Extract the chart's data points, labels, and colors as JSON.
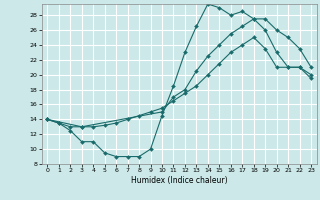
{
  "xlabel": "Humidex (Indice chaleur)",
  "bg_color": "#cce8e8",
  "grid_color": "#ffffff",
  "line_color": "#1a6b6b",
  "xlim": [
    -0.5,
    23.5
  ],
  "ylim": [
    8,
    29.5
  ],
  "yticks": [
    8,
    10,
    12,
    14,
    16,
    18,
    20,
    22,
    24,
    26,
    28
  ],
  "xticks": [
    0,
    1,
    2,
    3,
    4,
    5,
    6,
    7,
    8,
    9,
    10,
    11,
    12,
    13,
    14,
    15,
    16,
    17,
    18,
    19,
    20,
    21,
    22,
    23
  ],
  "curve1_x": [
    0,
    1,
    2,
    3,
    4,
    5,
    6,
    7,
    8,
    9,
    10,
    11,
    12,
    13,
    14,
    15,
    16,
    17,
    18,
    19,
    20,
    21,
    22,
    23
  ],
  "curve1_y": [
    14.0,
    13.5,
    12.5,
    11.0,
    11.0,
    9.5,
    9.0,
    9.0,
    9.0,
    10.0,
    14.5,
    18.5,
    23.0,
    26.5,
    29.5,
    29.0,
    28.0,
    28.5,
    27.5,
    26.0,
    23.0,
    21.0,
    21.0,
    19.5
  ],
  "curve2_x": [
    0,
    1,
    2,
    3,
    4,
    5,
    6,
    7,
    8,
    9,
    10,
    11,
    12,
    13,
    14,
    15,
    16,
    17,
    18,
    19,
    20,
    21,
    22,
    23
  ],
  "curve2_y": [
    14.0,
    13.5,
    13.0,
    13.0,
    13.0,
    13.2,
    13.5,
    14.0,
    14.5,
    15.0,
    15.5,
    16.5,
    17.5,
    18.5,
    20.0,
    21.5,
    23.0,
    24.0,
    25.0,
    23.5,
    21.0,
    21.0,
    21.0,
    20.0
  ],
  "curve3_x": [
    0,
    3,
    10,
    11,
    12,
    13,
    14,
    15,
    16,
    17,
    18,
    19,
    20,
    21,
    22,
    23
  ],
  "curve3_y": [
    14.0,
    13.0,
    15.0,
    17.0,
    18.0,
    20.5,
    22.5,
    24.0,
    25.5,
    26.5,
    27.5,
    27.5,
    26.0,
    25.0,
    23.5,
    21.0
  ]
}
